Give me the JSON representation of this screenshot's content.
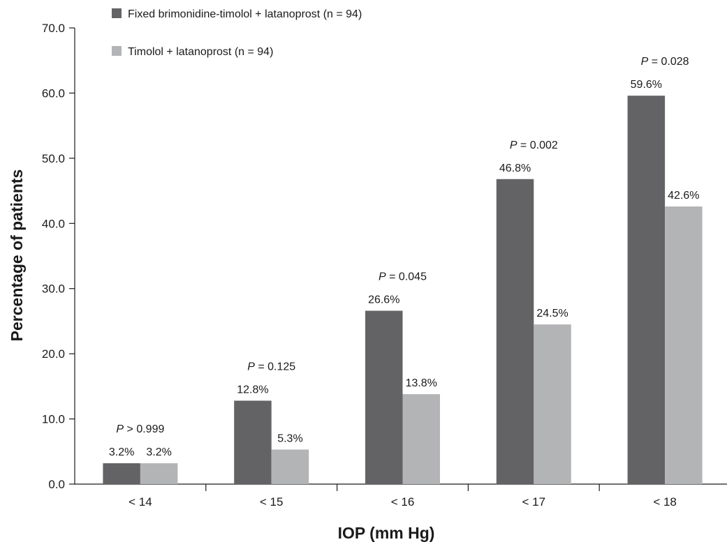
{
  "chart_data": {
    "type": "bar",
    "title": "",
    "xlabel": "IOP (mm Hg)",
    "ylabel": "Percentage of patients",
    "ylim": [
      0,
      70
    ],
    "yticks": [
      "0.0",
      "10.0",
      "20.0",
      "30.0",
      "40.0",
      "50.0",
      "60.0",
      "70.0"
    ],
    "categories": [
      "< 14",
      "< 15",
      "< 16",
      "< 17",
      "< 18"
    ],
    "series": [
      {
        "name": "Fixed brimonidine-timolol + latanoprost (n = 94)",
        "color": "#636365",
        "values": [
          3.2,
          12.8,
          26.6,
          46.8,
          59.6
        ],
        "labels": [
          "3.2%",
          "12.8%",
          "26.6%",
          "46.8%",
          "59.6%"
        ]
      },
      {
        "name": "Timolol + latanoprost (n = 94)",
        "color": "#b3b4b6",
        "values": [
          3.2,
          5.3,
          13.8,
          24.5,
          42.6
        ],
        "labels": [
          "3.2%",
          "5.3%",
          "13.8%",
          "24.5%",
          "42.6%"
        ]
      }
    ],
    "annotations": [
      {
        "p": "P",
        "rest": " > 0.999"
      },
      {
        "p": "P",
        "rest": " = 0.125"
      },
      {
        "p": "P",
        "rest": " = 0.045"
      },
      {
        "p": "P",
        "rest": " = 0.002"
      },
      {
        "p": "P",
        "rest": " = 0.028"
      }
    ],
    "legend_position": "top-left",
    "grid": false
  }
}
